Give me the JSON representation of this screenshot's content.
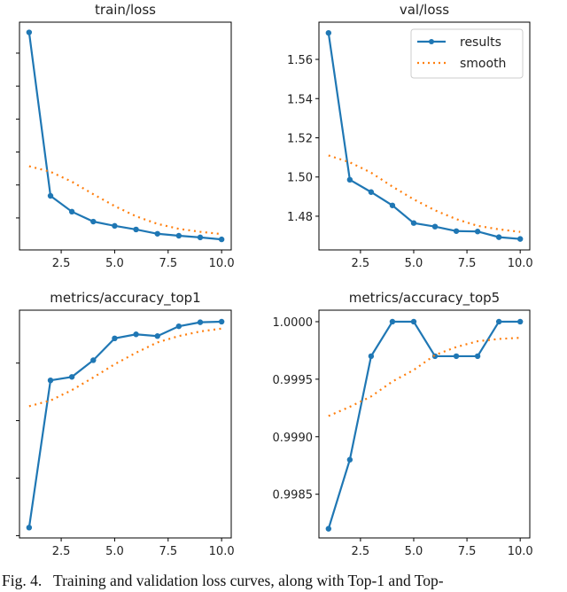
{
  "colors": {
    "results": "#1f77b4",
    "smooth": "#ff7f0e",
    "frame": "#000000"
  },
  "legend": {
    "entries": [
      "results",
      "smooth"
    ],
    "placement": "top-right of val/loss panel"
  },
  "caption": "Fig. 4.   Training and validation loss curves, along with Top-1 and Top-",
  "chart_data": [
    {
      "type": "line",
      "title": "train/loss",
      "x": [
        1,
        2,
        3,
        4,
        5,
        6,
        7,
        8,
        9,
        10
      ],
      "xticks": [
        2.5,
        5.0,
        7.5,
        10.0
      ],
      "xtick_labels": [
        "2.5",
        "5.0",
        "7.5",
        "10.0"
      ],
      "xlim": [
        0.55,
        10.45
      ],
      "y_units": "unlabeled axis; values in tick-spacing units above lowest visible tick",
      "yticks": [
        0,
        1,
        2,
        3,
        4,
        5
      ],
      "ytick_labels": [
        "",
        "",
        "",
        "",
        "",
        ""
      ],
      "ylim": [
        -0.97,
        5.94
      ],
      "series": [
        {
          "name": "results",
          "style": "solid-marker",
          "values": [
            5.63,
            0.67,
            0.19,
            -0.11,
            -0.24,
            -0.35,
            -0.48,
            -0.54,
            -0.59,
            -0.65
          ]
        },
        {
          "name": "smooth",
          "style": "dotted",
          "values": [
            1.57,
            1.4,
            1.1,
            0.72,
            0.36,
            0.05,
            -0.18,
            -0.33,
            -0.42,
            -0.49
          ]
        }
      ]
    },
    {
      "type": "line",
      "title": "val/loss",
      "x": [
        1,
        2,
        3,
        4,
        5,
        6,
        7,
        8,
        9,
        10
      ],
      "xticks": [
        2.5,
        5.0,
        7.5,
        10.0
      ],
      "xtick_labels": [
        "2.5",
        "5.0",
        "7.5",
        "10.0"
      ],
      "xlim": [
        0.55,
        10.45
      ],
      "yticks": [
        1.48,
        1.5,
        1.52,
        1.54,
        1.56
      ],
      "ytick_labels": [
        "1.48",
        "1.50",
        "1.52",
        "1.54",
        "1.56"
      ],
      "ylim": [
        1.4628,
        1.579
      ],
      "series": [
        {
          "name": "results",
          "style": "solid-marker",
          "values": [
            1.5735,
            1.4986,
            1.4923,
            1.4855,
            1.4765,
            1.4747,
            1.4724,
            1.4722,
            1.4693,
            1.4684
          ]
        },
        {
          "name": "smooth",
          "style": "dotted",
          "values": [
            1.511,
            1.5075,
            1.5022,
            1.4951,
            1.4886,
            1.483,
            1.4785,
            1.4751,
            1.4733,
            1.472
          ]
        }
      ]
    },
    {
      "type": "line",
      "title": "metrics/accuracy_top1",
      "x": [
        1,
        2,
        3,
        4,
        5,
        6,
        7,
        8,
        9,
        10
      ],
      "xticks": [
        2.5,
        5.0,
        7.5,
        10.0
      ],
      "xtick_labels": [
        "2.5",
        "5.0",
        "7.5",
        "10.0"
      ],
      "xlim": [
        0.55,
        10.45
      ],
      "y_units": "unlabeled axis; values in tick-spacing units above lowest visible tick",
      "yticks": [
        0,
        1,
        2,
        3
      ],
      "ytick_labels": [
        "",
        "",
        "",
        ""
      ],
      "ylim": [
        -0.04,
        3.92
      ],
      "series": [
        {
          "name": "results",
          "style": "solid-marker",
          "values": [
            0.14,
            2.7,
            2.76,
            3.05,
            3.43,
            3.5,
            3.47,
            3.64,
            3.71,
            3.72
          ]
        },
        {
          "name": "smooth",
          "style": "dotted",
          "values": [
            2.25,
            2.35,
            2.53,
            2.75,
            2.98,
            3.18,
            3.36,
            3.47,
            3.55,
            3.6
          ]
        }
      ]
    },
    {
      "type": "line",
      "title": "metrics/accuracy_top5",
      "x": [
        1,
        2,
        3,
        4,
        5,
        6,
        7,
        8,
        9,
        10
      ],
      "xticks": [
        2.5,
        5.0,
        7.5,
        10.0
      ],
      "xtick_labels": [
        "2.5",
        "5.0",
        "7.5",
        "10.0"
      ],
      "xlim": [
        0.55,
        10.45
      ],
      "yticks": [
        0.9985,
        0.999,
        0.9995,
        1.0
      ],
      "ytick_labels": [
        "0.9985",
        "0.9990",
        "0.9995",
        "1.0000"
      ],
      "ylim": [
        0.99812,
        1.0001
      ],
      "series": [
        {
          "name": "results",
          "style": "solid-marker",
          "values": [
            0.9982,
            0.9988,
            0.9997,
            1.0,
            1.0,
            0.9997,
            0.9997,
            0.9997,
            1.0,
            1.0
          ]
        },
        {
          "name": "smooth",
          "style": "dotted",
          "values": [
            0.99918,
            0.99926,
            0.99935,
            0.99948,
            0.99958,
            0.99971,
            0.99978,
            0.99983,
            0.99985,
            0.99986
          ]
        }
      ]
    }
  ]
}
